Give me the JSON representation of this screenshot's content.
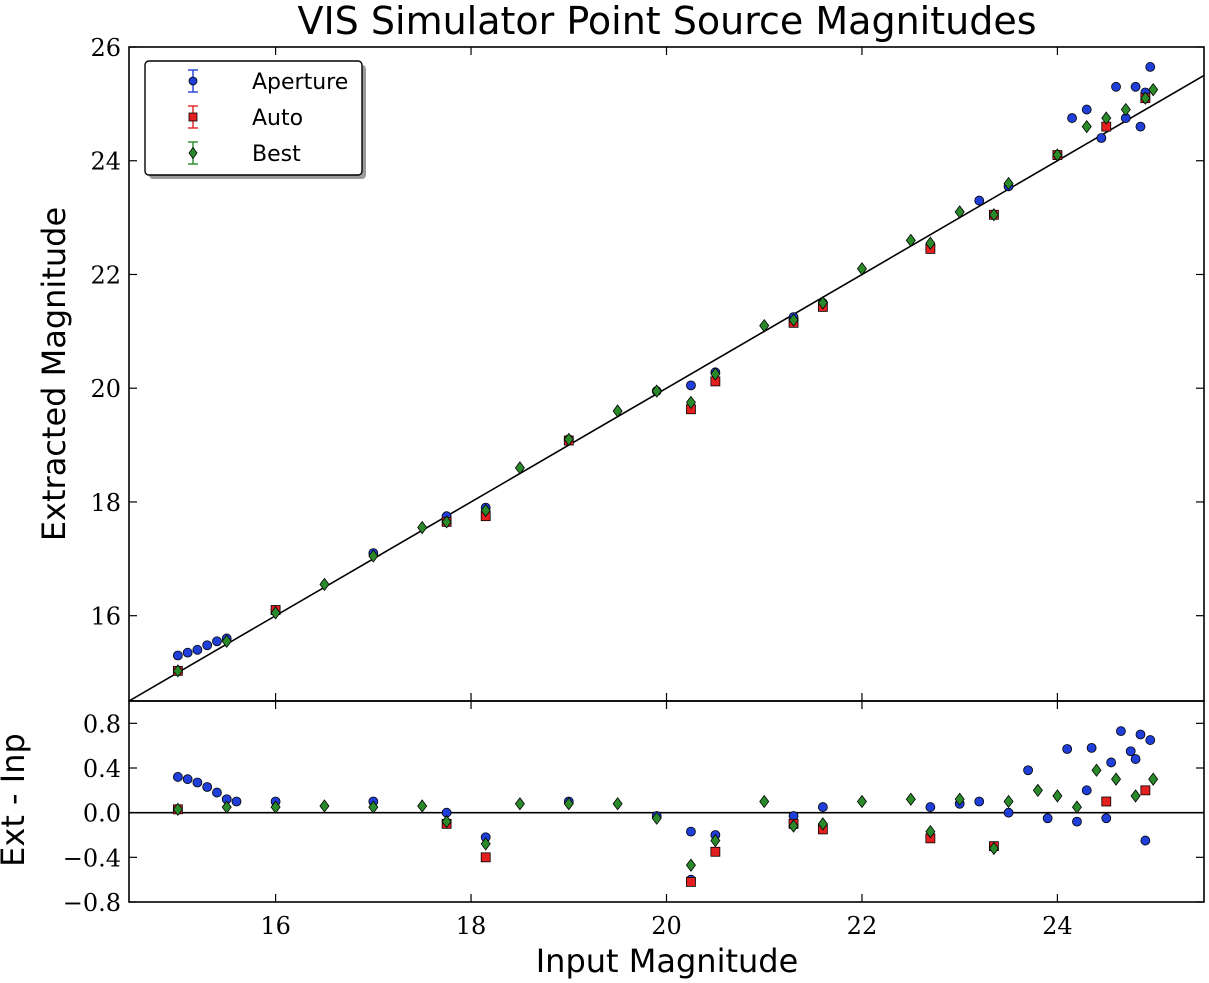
{
  "chart_data": [
    {
      "type": "scatter",
      "title": "VIS Simulator Point Source Magnitudes",
      "xlabel": "",
      "ylabel": "Extracted Magnitude",
      "xlim": [
        14.5,
        25.5
      ],
      "ylim": [
        14.5,
        26.0
      ],
      "yticks": [
        "16",
        "18",
        "20",
        "22",
        "24",
        "26"
      ],
      "grid": false,
      "legend_position": "top-left",
      "reference_line": "y = x",
      "series": [
        {
          "name": "Aperture",
          "color": "#1f3fd8",
          "marker": "circle",
          "points": [
            [
              15.0,
              15.3
            ],
            [
              15.1,
              15.35
            ],
            [
              15.2,
              15.4
            ],
            [
              15.3,
              15.48
            ],
            [
              15.4,
              15.55
            ],
            [
              15.5,
              15.6
            ],
            [
              16.0,
              16.1
            ],
            [
              17.0,
              17.1
            ],
            [
              17.75,
              17.75
            ],
            [
              18.15,
              17.9
            ],
            [
              19.0,
              19.1
            ],
            [
              19.9,
              19.95
            ],
            [
              20.25,
              20.05
            ],
            [
              20.5,
              20.28
            ],
            [
              21.3,
              21.25
            ],
            [
              21.6,
              21.5
            ],
            [
              22.7,
              22.5
            ],
            [
              23.2,
              23.3
            ],
            [
              23.5,
              23.55
            ],
            [
              24.0,
              24.1
            ],
            [
              24.15,
              24.75
            ],
            [
              24.3,
              24.9
            ],
            [
              24.45,
              24.4
            ],
            [
              24.6,
              25.3
            ],
            [
              24.7,
              24.75
            ],
            [
              24.8,
              25.3
            ],
            [
              24.85,
              24.6
            ],
            [
              24.9,
              25.2
            ],
            [
              24.95,
              25.65
            ]
          ]
        },
        {
          "name": "Auto",
          "color": "#e32020",
          "marker": "square",
          "points": [
            [
              15.0,
              15.03
            ],
            [
              16.0,
              16.1
            ],
            [
              17.75,
              17.65
            ],
            [
              18.15,
              17.75
            ],
            [
              19.0,
              19.08
            ],
            [
              20.25,
              19.63
            ],
            [
              20.5,
              20.12
            ],
            [
              21.3,
              21.15
            ],
            [
              21.6,
              21.43
            ],
            [
              22.7,
              22.45
            ],
            [
              23.35,
              23.05
            ],
            [
              24.0,
              24.1
            ],
            [
              24.5,
              24.6
            ],
            [
              24.9,
              25.1
            ]
          ]
        },
        {
          "name": "Best",
          "color": "#2a8a2a",
          "marker": "diamond",
          "points": [
            [
              15.0,
              15.03
            ],
            [
              15.5,
              15.55
            ],
            [
              16.0,
              16.05
            ],
            [
              16.5,
              16.55
            ],
            [
              17.0,
              17.05
            ],
            [
              17.5,
              17.55
            ],
            [
              17.75,
              17.65
            ],
            [
              18.15,
              17.85
            ],
            [
              18.5,
              18.6
            ],
            [
              19.0,
              19.1
            ],
            [
              19.5,
              19.6
            ],
            [
              19.9,
              19.95
            ],
            [
              20.25,
              19.75
            ],
            [
              20.5,
              20.25
            ],
            [
              21.0,
              21.1
            ],
            [
              21.3,
              21.2
            ],
            [
              21.6,
              21.5
            ],
            [
              22.0,
              22.1
            ],
            [
              22.5,
              22.6
            ],
            [
              22.7,
              22.55
            ],
            [
              23.0,
              23.1
            ],
            [
              23.35,
              23.05
            ],
            [
              23.5,
              23.6
            ],
            [
              24.0,
              24.1
            ],
            [
              24.3,
              24.6
            ],
            [
              24.5,
              24.75
            ],
            [
              24.7,
              24.9
            ],
            [
              24.9,
              25.1
            ],
            [
              24.98,
              25.25
            ]
          ]
        }
      ]
    },
    {
      "type": "scatter",
      "xlabel": "Input Magnitude",
      "ylabel": "Ext - Inp",
      "xlim": [
        14.5,
        25.5
      ],
      "ylim": [
        -0.8,
        1.0
      ],
      "xticks": [
        "16",
        "18",
        "20",
        "22",
        "24"
      ],
      "yticks": [
        "0.8",
        "0.4",
        "0.0",
        "−0.4",
        "−0.8"
      ],
      "grid": false,
      "reference_line": "y = 0",
      "series": [
        {
          "name": "Aperture",
          "color": "#1f3fd8",
          "marker": "circle",
          "points": [
            [
              15.0,
              0.32
            ],
            [
              15.1,
              0.3
            ],
            [
              15.2,
              0.27
            ],
            [
              15.3,
              0.23
            ],
            [
              15.4,
              0.18
            ],
            [
              15.5,
              0.12
            ],
            [
              15.6,
              0.1
            ],
            [
              16.0,
              0.1
            ],
            [
              17.0,
              0.1
            ],
            [
              17.75,
              0.0
            ],
            [
              18.15,
              -0.22
            ],
            [
              19.0,
              0.1
            ],
            [
              19.9,
              -0.03
            ],
            [
              20.25,
              -0.17
            ],
            [
              20.25,
              -0.6
            ],
            [
              20.5,
              -0.2
            ],
            [
              21.3,
              -0.03
            ],
            [
              21.6,
              0.05
            ],
            [
              22.7,
              0.05
            ],
            [
              23.0,
              0.08
            ],
            [
              23.2,
              0.1
            ],
            [
              23.5,
              0.0
            ],
            [
              23.7,
              0.38
            ],
            [
              23.9,
              -0.05
            ],
            [
              24.1,
              0.57
            ],
            [
              24.2,
              -0.08
            ],
            [
              24.3,
              0.2
            ],
            [
              24.35,
              0.58
            ],
            [
              24.5,
              -0.05
            ],
            [
              24.55,
              0.45
            ],
            [
              24.65,
              0.73
            ],
            [
              24.75,
              0.55
            ],
            [
              24.8,
              0.48
            ],
            [
              24.85,
              0.7
            ],
            [
              24.9,
              -0.25
            ],
            [
              24.95,
              0.65
            ]
          ]
        },
        {
          "name": "Auto",
          "color": "#e32020",
          "marker": "square",
          "points": [
            [
              15.0,
              0.03
            ],
            [
              17.75,
              -0.1
            ],
            [
              18.15,
              -0.4
            ],
            [
              20.25,
              -0.62
            ],
            [
              20.5,
              -0.35
            ],
            [
              21.3,
              -0.1
            ],
            [
              21.6,
              -0.15
            ],
            [
              22.7,
              -0.23
            ],
            [
              23.35,
              -0.3
            ],
            [
              24.5,
              0.1
            ],
            [
              24.9,
              0.2
            ]
          ]
        },
        {
          "name": "Best",
          "color": "#2a8a2a",
          "marker": "diamond",
          "points": [
            [
              15.0,
              0.03
            ],
            [
              15.5,
              0.05
            ],
            [
              16.0,
              0.05
            ],
            [
              16.5,
              0.06
            ],
            [
              17.0,
              0.05
            ],
            [
              17.5,
              0.06
            ],
            [
              17.75,
              -0.08
            ],
            [
              18.15,
              -0.28
            ],
            [
              18.5,
              0.08
            ],
            [
              19.0,
              0.08
            ],
            [
              19.5,
              0.08
            ],
            [
              19.9,
              -0.05
            ],
            [
              20.25,
              -0.47
            ],
            [
              20.5,
              -0.25
            ],
            [
              21.0,
              0.1
            ],
            [
              21.3,
              -0.12
            ],
            [
              21.6,
              -0.1
            ],
            [
              22.0,
              0.1
            ],
            [
              22.5,
              0.12
            ],
            [
              22.7,
              -0.17
            ],
            [
              23.0,
              0.12
            ],
            [
              23.35,
              -0.32
            ],
            [
              23.5,
              0.1
            ],
            [
              23.8,
              0.2
            ],
            [
              24.0,
              0.15
            ],
            [
              24.2,
              0.05
            ],
            [
              24.4,
              0.38
            ],
            [
              24.6,
              0.3
            ],
            [
              24.8,
              0.15
            ],
            [
              24.98,
              0.3
            ]
          ]
        }
      ]
    }
  ]
}
